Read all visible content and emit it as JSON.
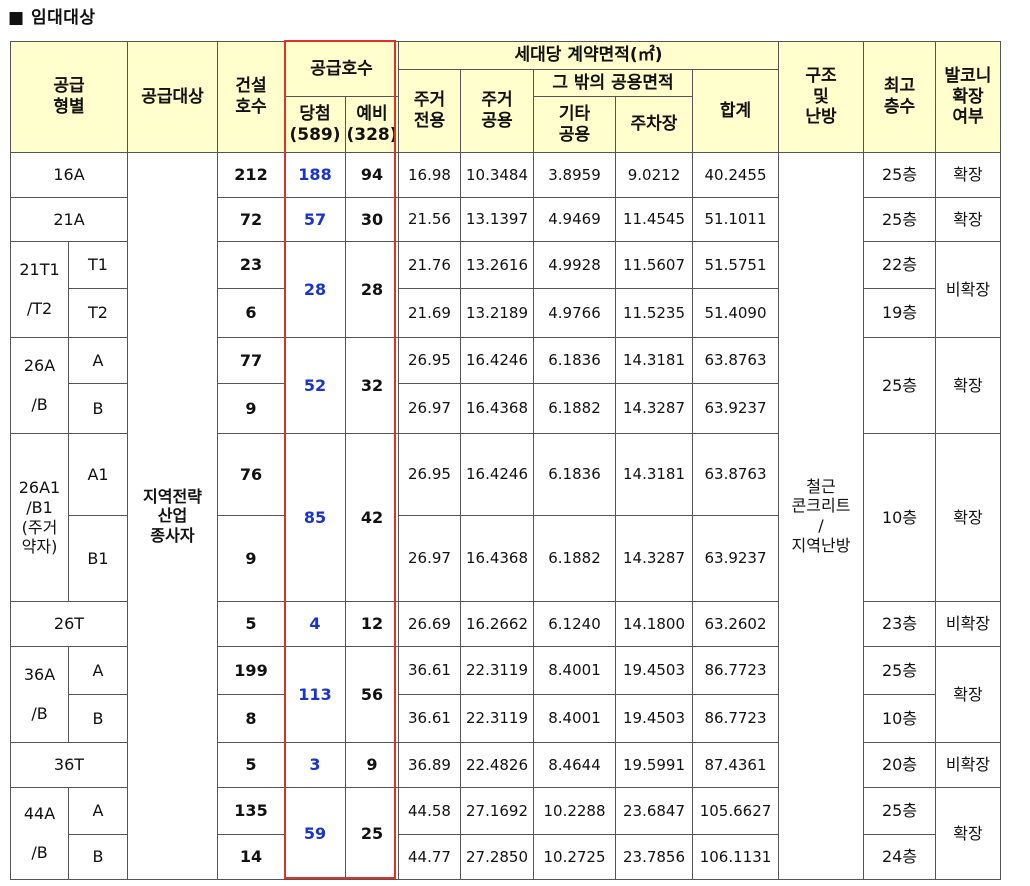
{
  "heading": "■ 임대대상",
  "headers": {
    "type": [
      "공급",
      "형별"
    ],
    "target": "공급대상",
    "built": [
      "건설",
      "호수"
    ],
    "supply": "공급호수",
    "winner": [
      "당첨",
      "(589)"
    ],
    "reserve": [
      "예비",
      "(328)"
    ],
    "area": "세대당 계약면적(㎡)",
    "res_exclusive": [
      "주거",
      "전용"
    ],
    "res_common": [
      "주거",
      "공용"
    ],
    "other_common": "그 밖의 공용면적",
    "etc_common": [
      "기타",
      "공용"
    ],
    "parking": "주차장",
    "total": "합계",
    "structure": [
      "구조",
      "및",
      "난방"
    ],
    "floors": [
      "최고",
      "층수"
    ],
    "balcony": [
      "발코니",
      "확장",
      "여부"
    ]
  },
  "target_value": [
    "지역전략",
    "산업",
    "종사자"
  ],
  "structure_value": [
    "철근",
    "콘크리트",
    "/",
    "지역난방"
  ],
  "rows": {
    "r16a": {
      "type": "16A",
      "built": "212",
      "winner": "188",
      "reserve": "94",
      "excl": "16.98",
      "rc": "10.3484",
      "etc": "3.8959",
      "park": "9.0212",
      "total": "40.2455",
      "floors": "25층",
      "balcony": "확장"
    },
    "r21a": {
      "type": "21A",
      "built": "72",
      "winner": "57",
      "reserve": "30",
      "excl": "21.56",
      "rc": "13.1397",
      "etc": "4.9469",
      "park": "11.4545",
      "total": "51.1011",
      "floors": "25층",
      "balcony": "확장"
    },
    "r21t": {
      "group": [
        "21T1",
        "/T2"
      ],
      "winner": "28",
      "reserve": "28",
      "balcony": "비확장",
      "a": {
        "sub": "T1",
        "built": "23",
        "excl": "21.76",
        "rc": "13.2616",
        "etc": "4.9928",
        "park": "11.5607",
        "total": "51.5751",
        "floors": "22층"
      },
      "b": {
        "sub": "T2",
        "built": "6",
        "excl": "21.69",
        "rc": "13.2189",
        "etc": "4.9766",
        "park": "11.5235",
        "total": "51.4090",
        "floors": "19층"
      }
    },
    "r26ab": {
      "group": [
        "26A",
        "/B"
      ],
      "winner": "52",
      "reserve": "32",
      "floors": "25층",
      "balcony": "확장",
      "a": {
        "sub": "A",
        "built": "77",
        "excl": "26.95",
        "rc": "16.4246",
        "etc": "6.1836",
        "park": "14.3181",
        "total": "63.8763"
      },
      "b": {
        "sub": "B",
        "built": "9",
        "excl": "26.97",
        "rc": "16.4368",
        "etc": "6.1882",
        "park": "14.3287",
        "total": "63.9237"
      }
    },
    "r26a1": {
      "group": [
        "26A1",
        "/B1",
        "(주거",
        "약자)"
      ],
      "winner": "85",
      "reserve": "42",
      "floors": "10층",
      "balcony": "확장",
      "a": {
        "sub": "A1",
        "built": "76",
        "excl": "26.95",
        "rc": "16.4246",
        "etc": "6.1836",
        "park": "14.3181",
        "total": "63.8763"
      },
      "b": {
        "sub": "B1",
        "built": "9",
        "excl": "26.97",
        "rc": "16.4368",
        "etc": "6.1882",
        "park": "14.3287",
        "total": "63.9237"
      }
    },
    "r26t": {
      "type": "26T",
      "built": "5",
      "winner": "4",
      "reserve": "12",
      "excl": "26.69",
      "rc": "16.2662",
      "etc": "6.1240",
      "park": "14.1800",
      "total": "63.2602",
      "floors": "23층",
      "balcony": "비확장"
    },
    "r36ab": {
      "group": [
        "36A",
        "/B"
      ],
      "winner": "113",
      "reserve": "56",
      "balcony": "확장",
      "a": {
        "sub": "A",
        "built": "199",
        "excl": "36.61",
        "rc": "22.3119",
        "etc": "8.4001",
        "park": "19.4503",
        "total": "86.7723",
        "floors": "25층"
      },
      "b": {
        "sub": "B",
        "built": "8",
        "excl": "36.61",
        "rc": "22.3119",
        "etc": "8.4001",
        "park": "19.4503",
        "total": "86.7723",
        "floors": "10층"
      }
    },
    "r36t": {
      "type": "36T",
      "built": "5",
      "winner": "3",
      "reserve": "9",
      "excl": "36.89",
      "rc": "22.4826",
      "etc": "8.4644",
      "park": "19.5991",
      "total": "87.4361",
      "floors": "20층",
      "balcony": "비확장"
    },
    "r44ab": {
      "group": [
        "44A",
        "/B"
      ],
      "winner": "59",
      "reserve": "25",
      "balcony": "확장",
      "a": {
        "sub": "A",
        "built": "135",
        "excl": "44.58",
        "rc": "27.1692",
        "etc": "10.2288",
        "park": "23.6847",
        "total": "105.6627",
        "floors": "25층"
      },
      "b": {
        "sub": "B",
        "built": "14",
        "excl": "44.77",
        "rc": "27.2850",
        "etc": "10.2725",
        "park": "23.7856",
        "total": "106.1131",
        "floors": "24층"
      }
    }
  },
  "colors": {
    "header_bg": "#fffecc",
    "winner_blue": "#1a33cc",
    "highlight_red": "#e0302a"
  }
}
